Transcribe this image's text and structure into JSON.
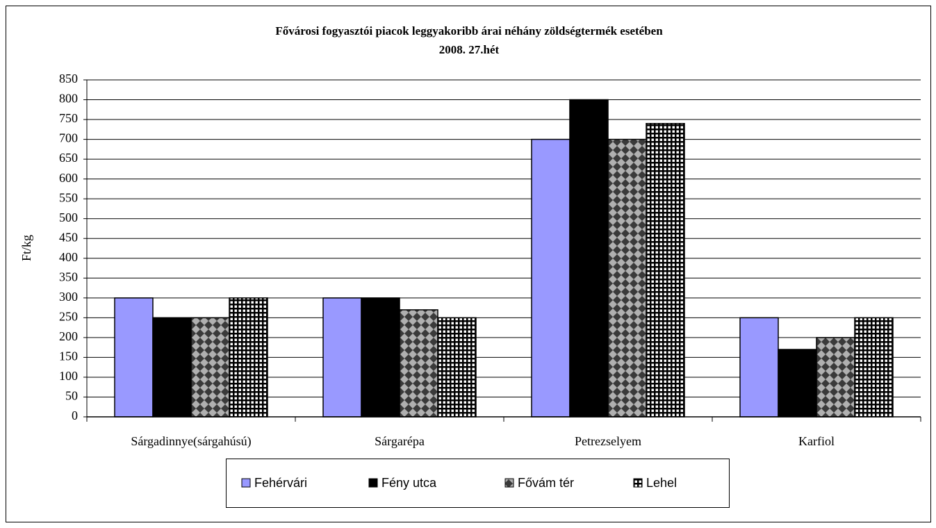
{
  "chart_data": {
    "type": "bar",
    "title": "Fővárosi fogyasztói piacok leggyakoribb árai néhány zöldségtermék esetében",
    "subtitle": "2008. 27.hét",
    "y_label": "Ft/kg",
    "categories": [
      "Sárgadinnye(sárgahúsú)",
      "Sárgarépa",
      "Petrezselyem",
      "Karfiol"
    ],
    "series": [
      {
        "name": "Fehérvári",
        "color": "#9999ff",
        "values": [
          300,
          300,
          700,
          250
        ]
      },
      {
        "name": "Fény utca",
        "color": "#000000",
        "values": [
          250,
          300,
          800,
          170
        ]
      },
      {
        "name": "Fővám tér",
        "color": "#808080",
        "pattern": "diamond",
        "values": [
          250,
          270,
          700,
          200
        ]
      },
      {
        "name": "Lehel",
        "color": "#000000",
        "pattern": "grid",
        "values": [
          300,
          250,
          740,
          250
        ]
      }
    ],
    "ylim": [
      0,
      850
    ],
    "yticks": [
      0,
      50,
      100,
      150,
      200,
      250,
      300,
      350,
      400,
      450,
      500,
      550,
      600,
      650,
      700,
      750,
      800,
      850
    ],
    "grid": true,
    "legend": "bottom"
  }
}
